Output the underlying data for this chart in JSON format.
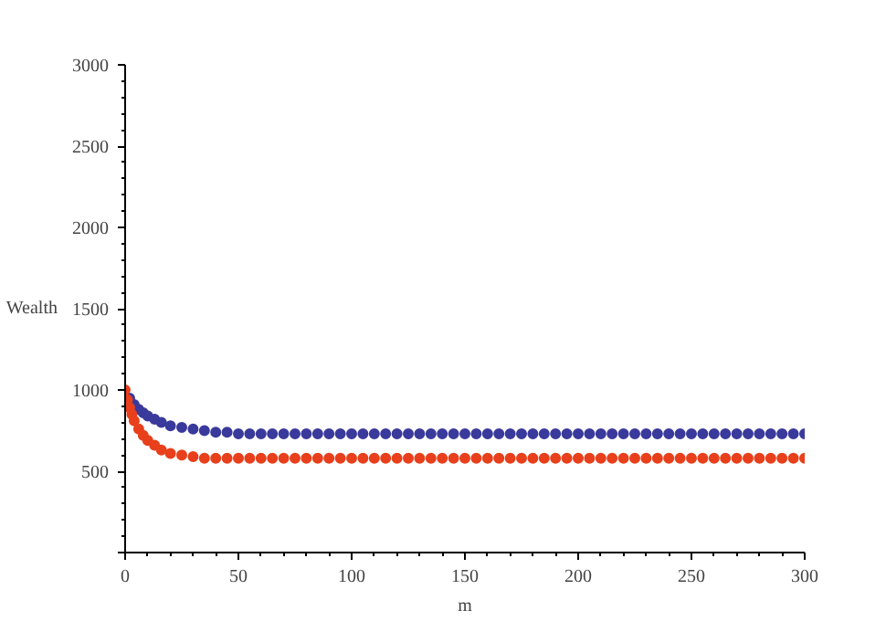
{
  "chart_data": {
    "type": "scatter",
    "xlabel": "m",
    "ylabel": "Wealth",
    "series": [
      {
        "color": "#3a3a9c",
        "x": [
          2,
          4,
          6,
          8,
          10,
          13,
          16,
          20,
          25,
          30,
          35,
          40,
          45,
          50,
          55,
          60,
          65,
          70,
          75,
          80,
          85,
          90,
          95,
          100,
          105,
          110,
          115,
          120,
          125,
          130,
          135,
          140,
          145,
          150,
          155,
          160,
          165,
          170,
          175,
          180,
          185,
          190,
          195,
          200,
          205,
          210,
          215,
          220,
          225,
          230,
          235,
          240,
          245,
          250,
          255,
          260,
          265,
          270,
          275,
          280,
          285,
          290,
          295,
          300
        ],
        "values": [
          950,
          910,
          880,
          860,
          840,
          820,
          800,
          780,
          770,
          760,
          750,
          740,
          740,
          730,
          730,
          730,
          730,
          730,
          730,
          730,
          730,
          730,
          730,
          730,
          730,
          730,
          730,
          730,
          730,
          730,
          730,
          730,
          730,
          730,
          730,
          730,
          730,
          730,
          730,
          730,
          730,
          730,
          730,
          730,
          730,
          730,
          730,
          730,
          730,
          730,
          730,
          730,
          730,
          730,
          730,
          730,
          730,
          730,
          730,
          730,
          730,
          730,
          730,
          730
        ]
      },
      {
        "color": "#e8401c",
        "x": [
          0,
          1,
          2,
          3,
          4,
          6,
          8,
          10,
          13,
          16,
          20,
          25,
          30,
          35,
          40,
          45,
          50,
          55,
          60,
          65,
          70,
          75,
          80,
          85,
          90,
          95,
          100,
          105,
          110,
          115,
          120,
          125,
          130,
          135,
          140,
          145,
          150,
          155,
          160,
          165,
          170,
          175,
          180,
          185,
          190,
          195,
          200,
          205,
          210,
          215,
          220,
          225,
          230,
          235,
          240,
          245,
          250,
          255,
          260,
          265,
          270,
          275,
          280,
          285,
          290,
          295,
          300
        ],
        "values": [
          1000,
          940,
          890,
          850,
          810,
          760,
          720,
          690,
          660,
          630,
          610,
          600,
          590,
          580,
          580,
          580,
          580,
          580,
          580,
          580,
          580,
          580,
          580,
          580,
          580,
          580,
          580,
          580,
          580,
          580,
          580,
          580,
          580,
          580,
          580,
          580,
          580,
          580,
          580,
          580,
          580,
          580,
          580,
          580,
          580,
          580,
          580,
          580,
          580,
          580,
          580,
          580,
          580,
          580,
          580,
          580,
          580,
          580,
          580,
          580,
          580,
          580,
          580,
          580,
          580,
          580,
          580
        ]
      }
    ],
    "marker": "circle",
    "grid": false,
    "xlim": [
      0,
      300
    ],
    "ylim": [
      0,
      3000
    ],
    "xticks": [
      0,
      50,
      100,
      150,
      200,
      250,
      300
    ],
    "yticks": [
      {
        "value": 0,
        "label": null
      },
      500,
      1000,
      1500,
      2000,
      2500,
      3000
    ]
  }
}
